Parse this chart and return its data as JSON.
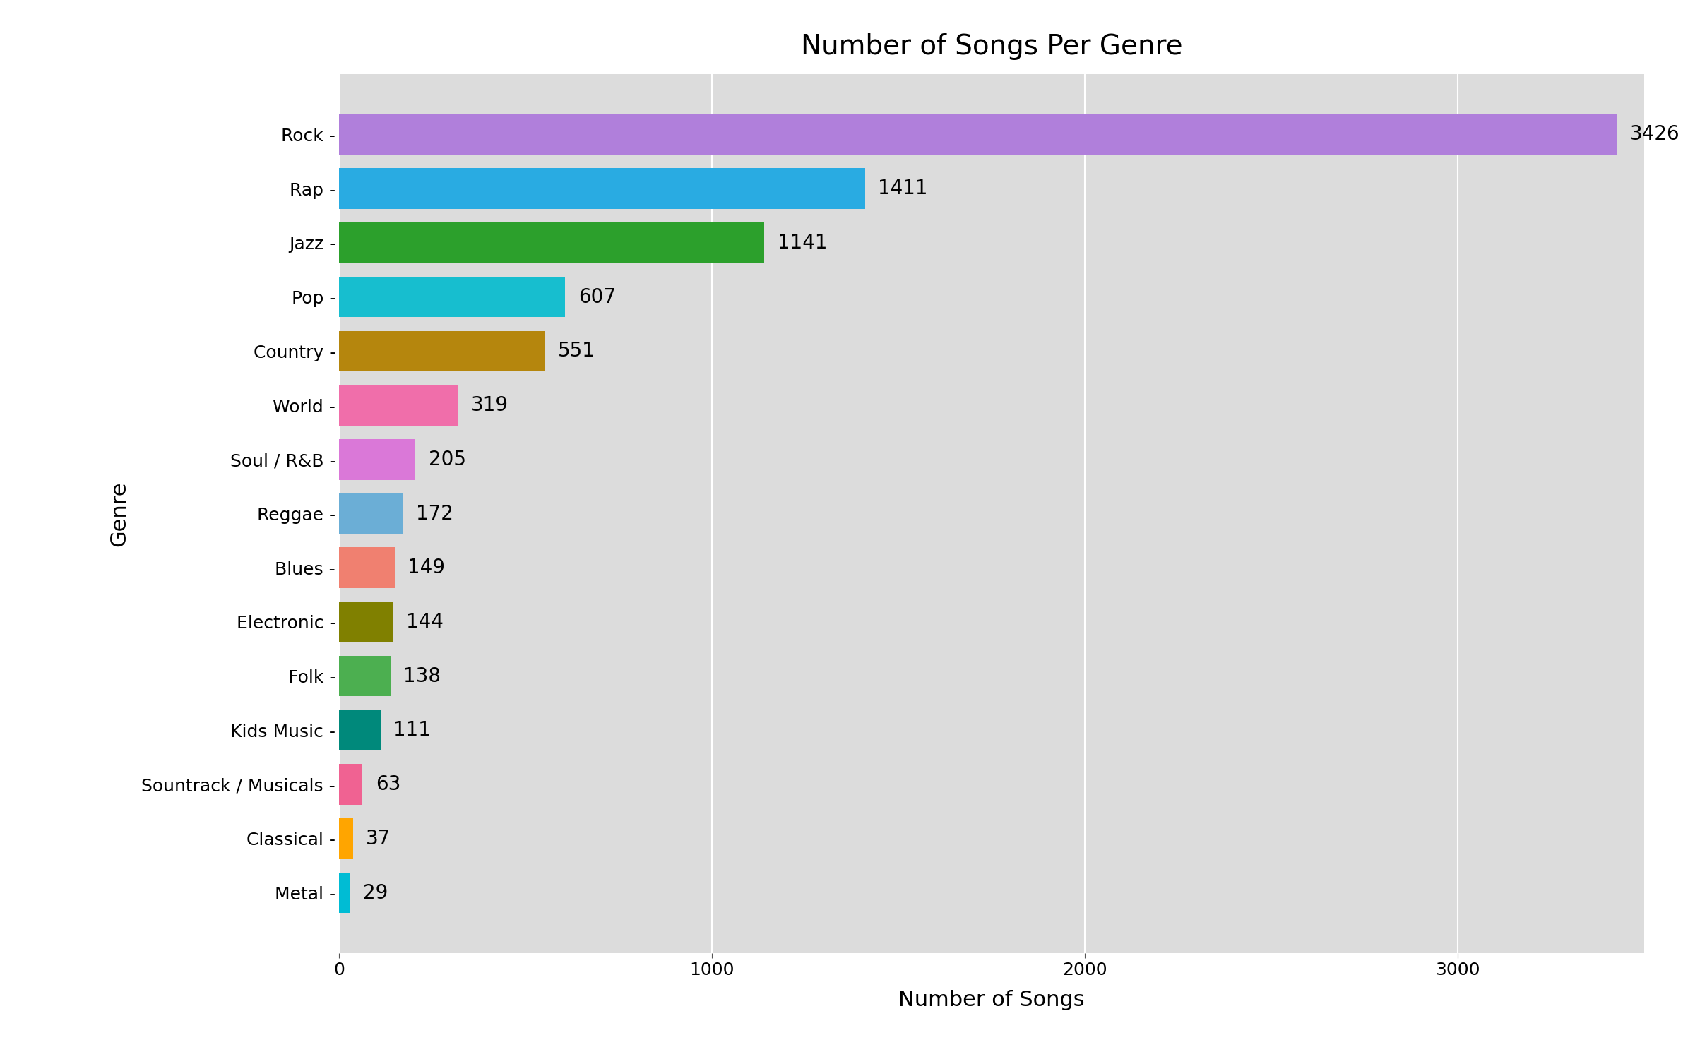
{
  "title": "Number of Songs Per Genre",
  "xlabel": "Number of Songs",
  "ylabel": "Genre",
  "categories": [
    "Rock",
    "Rap",
    "Jazz",
    "Pop",
    "Country",
    "World",
    "Soul / R&B",
    "Reggae",
    "Blues",
    "Electronic",
    "Folk",
    "Kids Music",
    "Sountrack / Musicals",
    "Classical",
    "Metal"
  ],
  "values": [
    3426,
    1411,
    1141,
    607,
    551,
    319,
    205,
    172,
    149,
    144,
    138,
    111,
    63,
    37,
    29
  ],
  "bar_colors": [
    "#b07fdb",
    "#29abe2",
    "#2ca02c",
    "#17becf",
    "#b5860d",
    "#f06eaa",
    "#da78d8",
    "#6baed6",
    "#f08070",
    "#808000",
    "#4caf50",
    "#00897b",
    "#f06292",
    "#ffa500",
    "#00bcd4"
  ],
  "plot_bg_color": "#dcdcdc",
  "figure_bg_color": "#ffffff",
  "xlim": [
    0,
    3500
  ],
  "xticks": [
    0,
    1000,
    2000,
    3000
  ],
  "title_fontsize": 28,
  "axis_label_fontsize": 22,
  "tick_fontsize": 18,
  "value_label_fontsize": 20,
  "bar_height": 0.75
}
